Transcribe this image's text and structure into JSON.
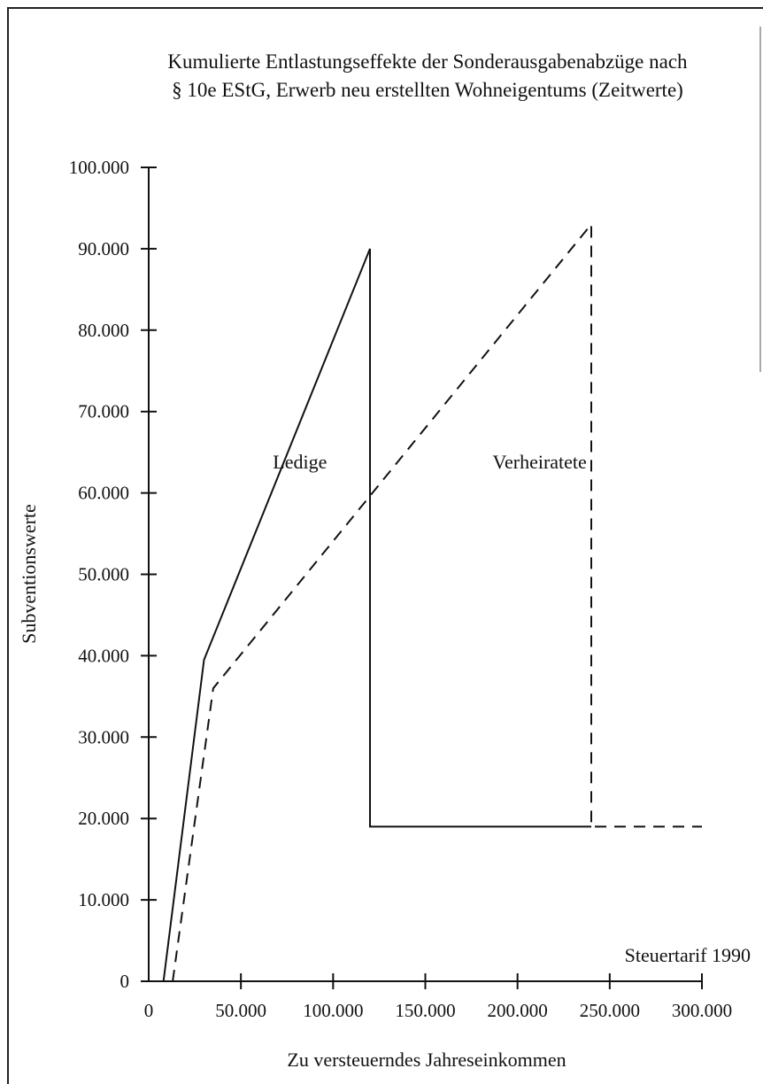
{
  "chart_data": {
    "type": "line",
    "title_lines": [
      "Kumulierte Entlastungseffekte der Sonderausgabenabzüge nach",
      "§ 10e EStG, Erwerb neu erstellten Wohneigentums (Zeitwerte)"
    ],
    "xlabel": "Zu versteuerndes Jahreseinkommen",
    "ylabel": "Subventionswerte",
    "xlim": [
      0,
      300000
    ],
    "ylim": [
      0,
      100000
    ],
    "x_ticks": [
      0,
      50000,
      100000,
      150000,
      200000,
      250000,
      300000
    ],
    "x_tick_labels": [
      "0",
      "50.000",
      "100.000",
      "150.000",
      "200.000",
      "250.000",
      "300.000"
    ],
    "y_ticks": [
      0,
      10000,
      20000,
      30000,
      40000,
      50000,
      60000,
      70000,
      80000,
      90000,
      100000
    ],
    "y_tick_labels": [
      "0",
      "10.000",
      "20.000",
      "30.000",
      "40.000",
      "50.000",
      "60.000",
      "70.000",
      "80.000",
      "90.000",
      "100.000"
    ],
    "grid": false,
    "annotation": "Steuertarif 1990",
    "series": [
      {
        "name": "Ledige",
        "style": "solid",
        "color": "#111111",
        "points": [
          [
            8000,
            0
          ],
          [
            30000,
            39500
          ],
          [
            120000,
            90000
          ],
          [
            120000,
            19000
          ],
          [
            240000,
            19000
          ]
        ]
      },
      {
        "name": "Verheiratete",
        "style": "dashed",
        "color": "#111111",
        "points": [
          [
            13000,
            0
          ],
          [
            35000,
            36000
          ],
          [
            240000,
            93000
          ],
          [
            240000,
            19000
          ],
          [
            300000,
            19000
          ]
        ]
      }
    ],
    "series_label_positions": [
      {
        "name": "Ledige",
        "x": 82000,
        "y": 63000
      },
      {
        "name": "Verheiratete",
        "x": 212000,
        "y": 63000
      }
    ]
  }
}
